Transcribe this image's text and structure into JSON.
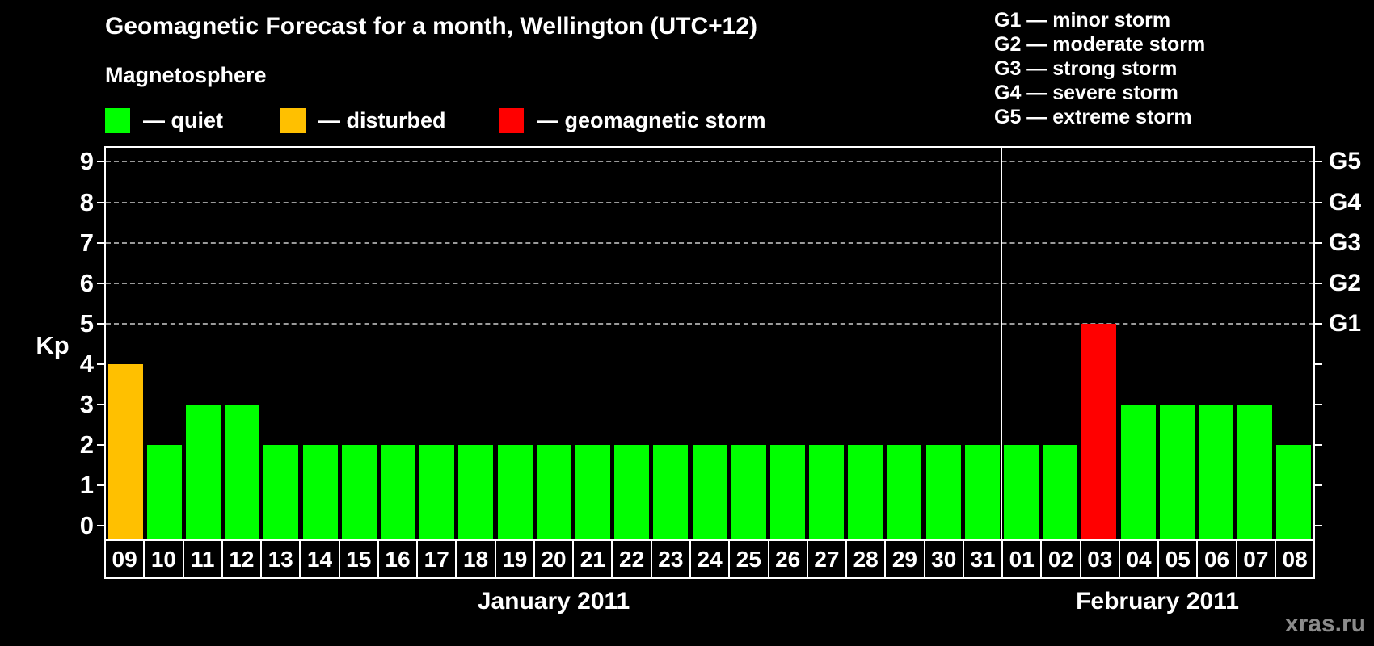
{
  "title": "Geomagnetic Forecast for a month, Wellington (UTC+12)",
  "legend": {
    "heading": "Magnetosphere",
    "items": [
      {
        "name": "quiet",
        "label": "— quiet",
        "color": "#00ff00",
        "x": 0
      },
      {
        "name": "disturbed",
        "label": "— disturbed",
        "color": "#ffc000",
        "x": 217
      },
      {
        "name": "geomagnetic-storm",
        "label": "— geomagnetic storm",
        "color": "#ff0000",
        "x": 487
      }
    ]
  },
  "storm_scale_legend": [
    "G1 — minor storm",
    "G2 — moderate storm",
    "G3 — strong storm",
    "G4 — severe storm",
    "G5 — extreme storm"
  ],
  "y_axis_label": "Kp",
  "watermark": "xras.ru",
  "chart_data": {
    "type": "bar",
    "title": "Geomagnetic Forecast for a month, Wellington (UTC+12)",
    "ylabel": "Kp",
    "ylim": [
      0,
      9
    ],
    "y_ticks": [
      0,
      1,
      2,
      3,
      4,
      5,
      6,
      7,
      8,
      9
    ],
    "grid": "dashed horizontal at Kp 5-9 only",
    "right_axis_labels": [
      {
        "kp": 5,
        "label": "G1"
      },
      {
        "kp": 6,
        "label": "G2"
      },
      {
        "kp": 7,
        "label": "G3"
      },
      {
        "kp": 8,
        "label": "G4"
      },
      {
        "kp": 9,
        "label": "G5"
      }
    ],
    "months": [
      {
        "label": "January 2011",
        "days": 23
      },
      {
        "label": "February 2011",
        "days": 8
      }
    ],
    "categories": [
      "09",
      "10",
      "11",
      "12",
      "13",
      "14",
      "15",
      "16",
      "17",
      "18",
      "19",
      "20",
      "21",
      "22",
      "23",
      "24",
      "25",
      "26",
      "27",
      "28",
      "29",
      "30",
      "31",
      "01",
      "02",
      "03",
      "04",
      "05",
      "06",
      "07",
      "08"
    ],
    "values": [
      4,
      2,
      3,
      3,
      2,
      2,
      2,
      2,
      2,
      2,
      2,
      2,
      2,
      2,
      2,
      2,
      2,
      2,
      2,
      2,
      2,
      2,
      2,
      2,
      2,
      5,
      3,
      3,
      3,
      3,
      2
    ],
    "color_rule": {
      "quiet_max_kp": 3,
      "disturbed_kp": 4,
      "storm_min_kp": 5
    },
    "colors": {
      "quiet": "#00ff00",
      "disturbed": "#ffc000",
      "storm": "#ff0000"
    }
  }
}
